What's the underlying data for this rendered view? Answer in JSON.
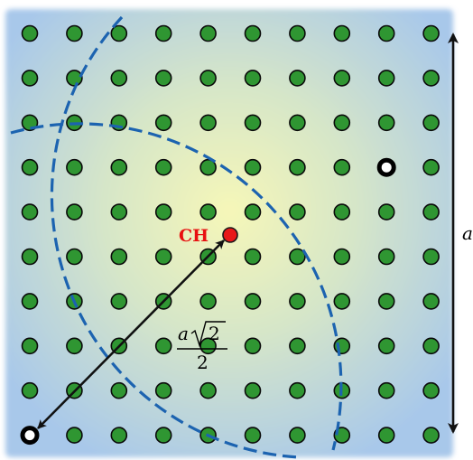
{
  "diagram": {
    "grid": {
      "rows": 10,
      "cols": 10
    },
    "center_label": "CH",
    "side_label": "a",
    "radius_label": {
      "numerator_var": "a",
      "numerator_root": "2",
      "denominator": "2"
    },
    "vacancies": [
      {
        "row": 3,
        "col": 8
      },
      {
        "row": 9,
        "col": 0
      }
    ],
    "colors": {
      "atom_fill": "#2f9632",
      "atom_stroke": "#0a0a0a",
      "center_atom": "#e81818",
      "center_label": "#e81010",
      "dashed_arc": "#1c63b0",
      "background_center": "#f6f7b8",
      "background_edge": "#a8c8ea",
      "arrows": "#111111"
    }
  }
}
